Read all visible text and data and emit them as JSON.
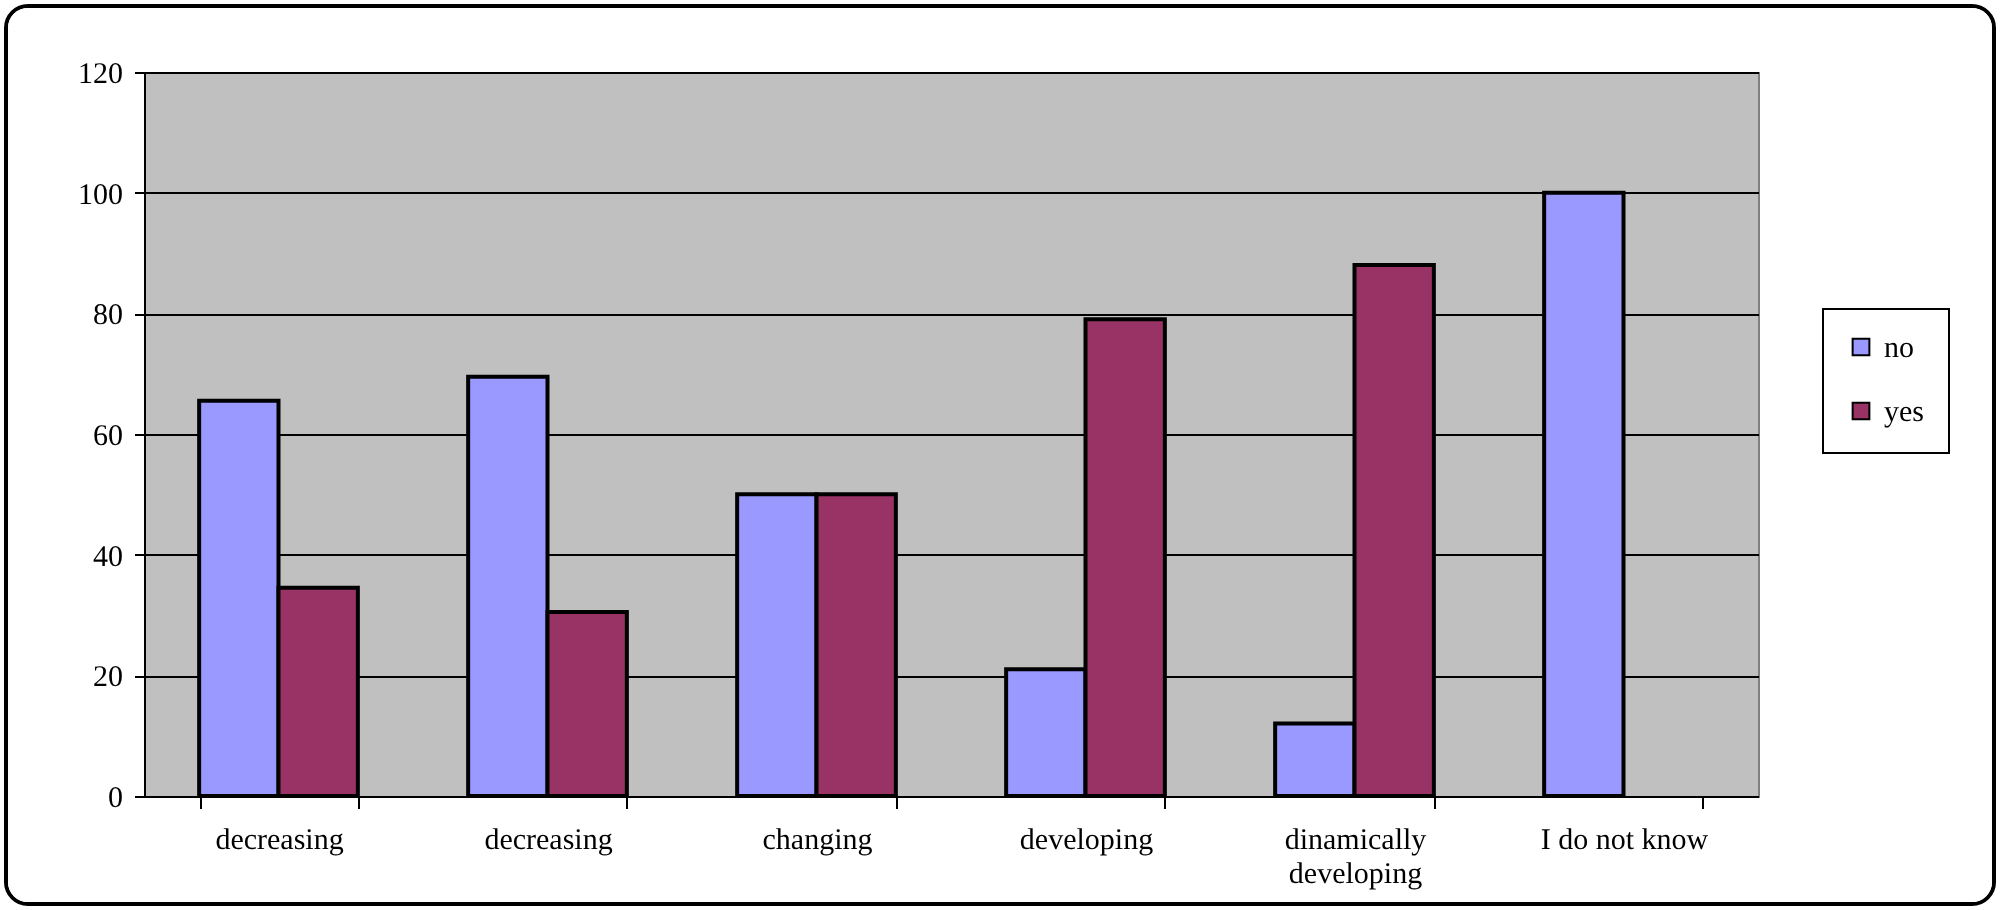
{
  "chart_data": {
    "type": "bar",
    "categories": [
      "decreasing",
      "decreasing",
      "changing",
      "developing",
      "dinamically\ndeveloping",
      "I do not know"
    ],
    "series": [
      {
        "name": "no",
        "color": "#9999ff",
        "values": [
          65.5,
          69.5,
          50,
          21,
          12,
          100
        ]
      },
      {
        "name": "yes",
        "color": "#993366",
        "values": [
          34.5,
          30.5,
          50,
          79,
          88,
          null
        ]
      }
    ],
    "ylim": [
      0,
      120
    ],
    "yticks": [
      0,
      20,
      40,
      60,
      80,
      100,
      120
    ],
    "grid": "y",
    "legend": "right"
  }
}
